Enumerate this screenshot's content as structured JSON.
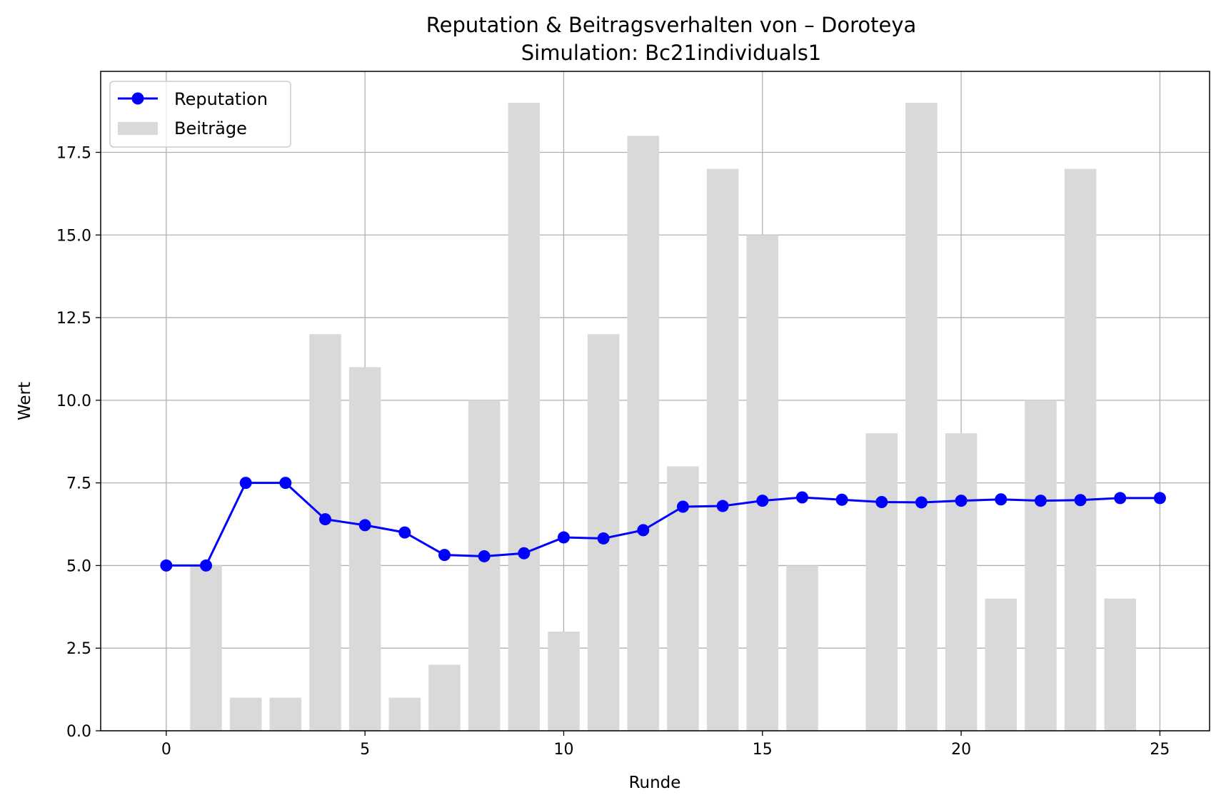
{
  "chart_data": {
    "type": "bar+line",
    "title": "Reputation & Beitragsverhalten von – Doroteya",
    "subtitle": "Simulation: Bc21individuals1",
    "xlabel": "Runde",
    "ylabel": "Wert",
    "xlim": [
      -1.65,
      26.25
    ],
    "ylim": [
      0,
      19.95
    ],
    "x_ticks": [
      "0",
      "5",
      "10",
      "15",
      "20",
      "25"
    ],
    "y_ticks": [
      "0.0",
      "2.5",
      "5.0",
      "7.5",
      "10.0",
      "12.5",
      "15.0",
      "17.5"
    ],
    "grid": true,
    "legend_position": "top-left",
    "series": [
      {
        "name": "Reputation",
        "type": "line",
        "color": "#0000ff",
        "x": [
          0,
          1,
          2,
          3,
          4,
          5,
          6,
          7,
          8,
          9,
          10,
          11,
          12,
          13,
          14,
          15,
          16,
          17,
          18,
          19,
          20,
          21,
          22,
          23,
          24,
          25
        ],
        "values": [
          5.0,
          5.0,
          7.5,
          7.5,
          6.4,
          6.22,
          6.0,
          5.32,
          5.28,
          5.37,
          5.85,
          5.82,
          6.07,
          6.78,
          6.8,
          6.96,
          7.06,
          6.99,
          6.92,
          6.91,
          6.96,
          7.0,
          6.96,
          6.98,
          7.04,
          7.04
        ]
      },
      {
        "name": "Beiträge",
        "type": "bar",
        "color": "#d9d9d9",
        "x": [
          0,
          1,
          2,
          3,
          4,
          5,
          6,
          7,
          8,
          9,
          10,
          11,
          12,
          13,
          14,
          15,
          16,
          17,
          18,
          19,
          20,
          21,
          22,
          23,
          24,
          25
        ],
        "values": [
          0,
          5,
          1,
          1,
          12,
          11,
          1,
          2,
          10,
          19,
          3,
          12,
          18,
          8,
          17,
          15,
          5,
          0,
          9,
          19,
          9,
          4,
          10,
          17,
          4,
          0
        ]
      }
    ]
  }
}
